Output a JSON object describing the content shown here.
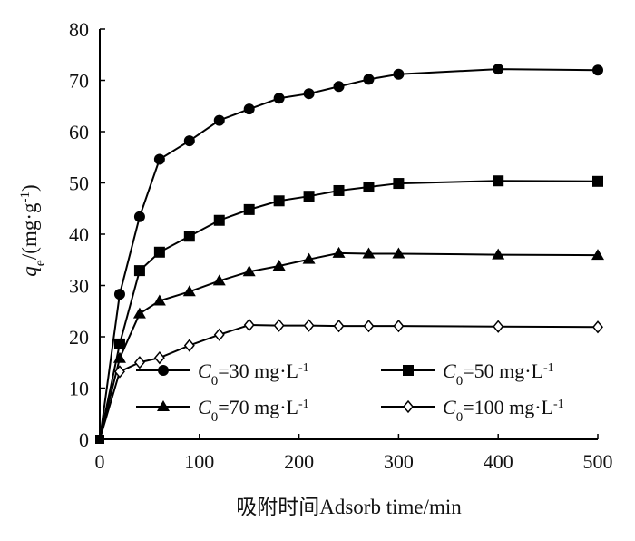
{
  "chart_data": {
    "type": "line",
    "xlabel": "吸附时间Adsorb time/min",
    "ylabel": {
      "main": "q",
      "sub": "e",
      "rest": "/(mg·g",
      "sup": "-1",
      "close": ")"
    },
    "xlim": [
      0,
      500
    ],
    "ylim": [
      0,
      80
    ],
    "x_ticks": [
      0,
      100,
      200,
      300,
      400,
      500
    ],
    "y_ticks": [
      0,
      10,
      20,
      30,
      40,
      50,
      60,
      70,
      80
    ],
    "grid": false,
    "legend_position": "bottom-inside",
    "series": [
      {
        "marker": "circle",
        "legend": {
          "c": "C",
          "sub": "0",
          "text": "=30 mg·L",
          "sup": "-1"
        },
        "x": [
          0,
          20,
          40,
          60,
          90,
          120,
          150,
          180,
          210,
          240,
          270,
          300,
          400,
          500
        ],
        "y": [
          0,
          28.3,
          43.4,
          54.6,
          58.2,
          62.2,
          64.4,
          66.5,
          67.4,
          68.8,
          70.2,
          71.2,
          72.2,
          72.0
        ]
      },
      {
        "marker": "square",
        "legend": {
          "c": "C",
          "sub": "0",
          "text": "=50 mg·L",
          "sup": "-1"
        },
        "x": [
          0,
          20,
          40,
          60,
          90,
          120,
          150,
          180,
          210,
          240,
          270,
          300,
          400,
          500
        ],
        "y": [
          0,
          18.6,
          32.9,
          36.5,
          39.6,
          42.7,
          44.8,
          46.5,
          47.4,
          48.5,
          49.2,
          49.9,
          50.4,
          50.3
        ]
      },
      {
        "marker": "triangle",
        "legend": {
          "c": "C",
          "sub": "0",
          "text": "=70 mg·L",
          "sup": "-1"
        },
        "x": [
          0,
          20,
          40,
          60,
          90,
          120,
          150,
          180,
          210,
          240,
          270,
          300,
          400,
          500
        ],
        "y": [
          0,
          15.8,
          24.5,
          27.0,
          28.8,
          30.9,
          32.7,
          33.8,
          35.1,
          36.3,
          36.2,
          36.2,
          36.0,
          35.9
        ]
      },
      {
        "marker": "diamond",
        "legend": {
          "c": "C",
          "sub": "0",
          "text": "=100 mg·L",
          "sup": "-1"
        },
        "x": [
          0,
          20,
          40,
          60,
          90,
          120,
          150,
          180,
          210,
          240,
          270,
          300,
          400,
          500
        ],
        "y": [
          0,
          13.2,
          15.0,
          15.9,
          18.3,
          20.4,
          22.3,
          22.2,
          22.2,
          22.1,
          22.1,
          22.1,
          22.0,
          21.9
        ]
      }
    ]
  }
}
